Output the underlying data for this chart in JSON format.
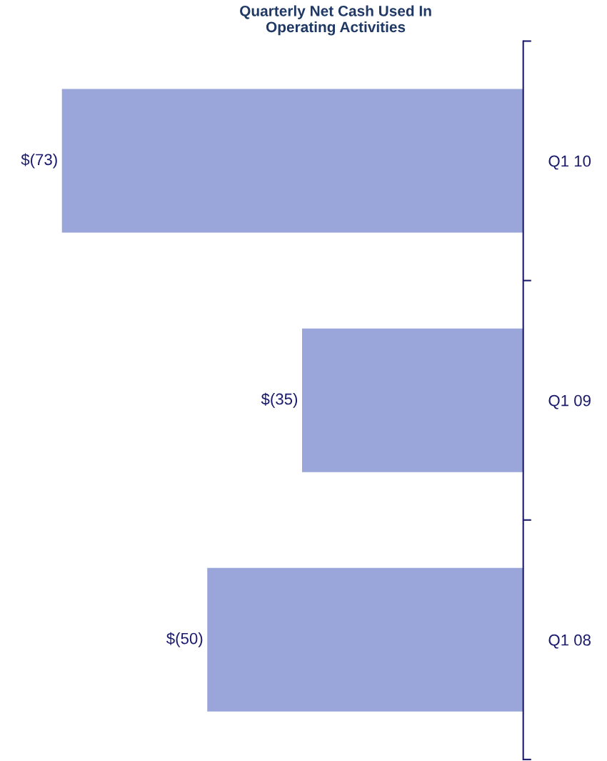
{
  "chart_data": {
    "type": "bar",
    "orientation": "horizontal",
    "title": "Quarterly Net Cash Used In\nOperating Activities",
    "categories": [
      "Q1 10",
      "Q1 09",
      "Q1 08"
    ],
    "values": [
      -73,
      -35,
      -50
    ],
    "color": "#9aa6da",
    "value_labels": [
      "$(73)",
      "$(35)",
      "$(50)"
    ],
    "grid": false,
    "legend": false
  }
}
